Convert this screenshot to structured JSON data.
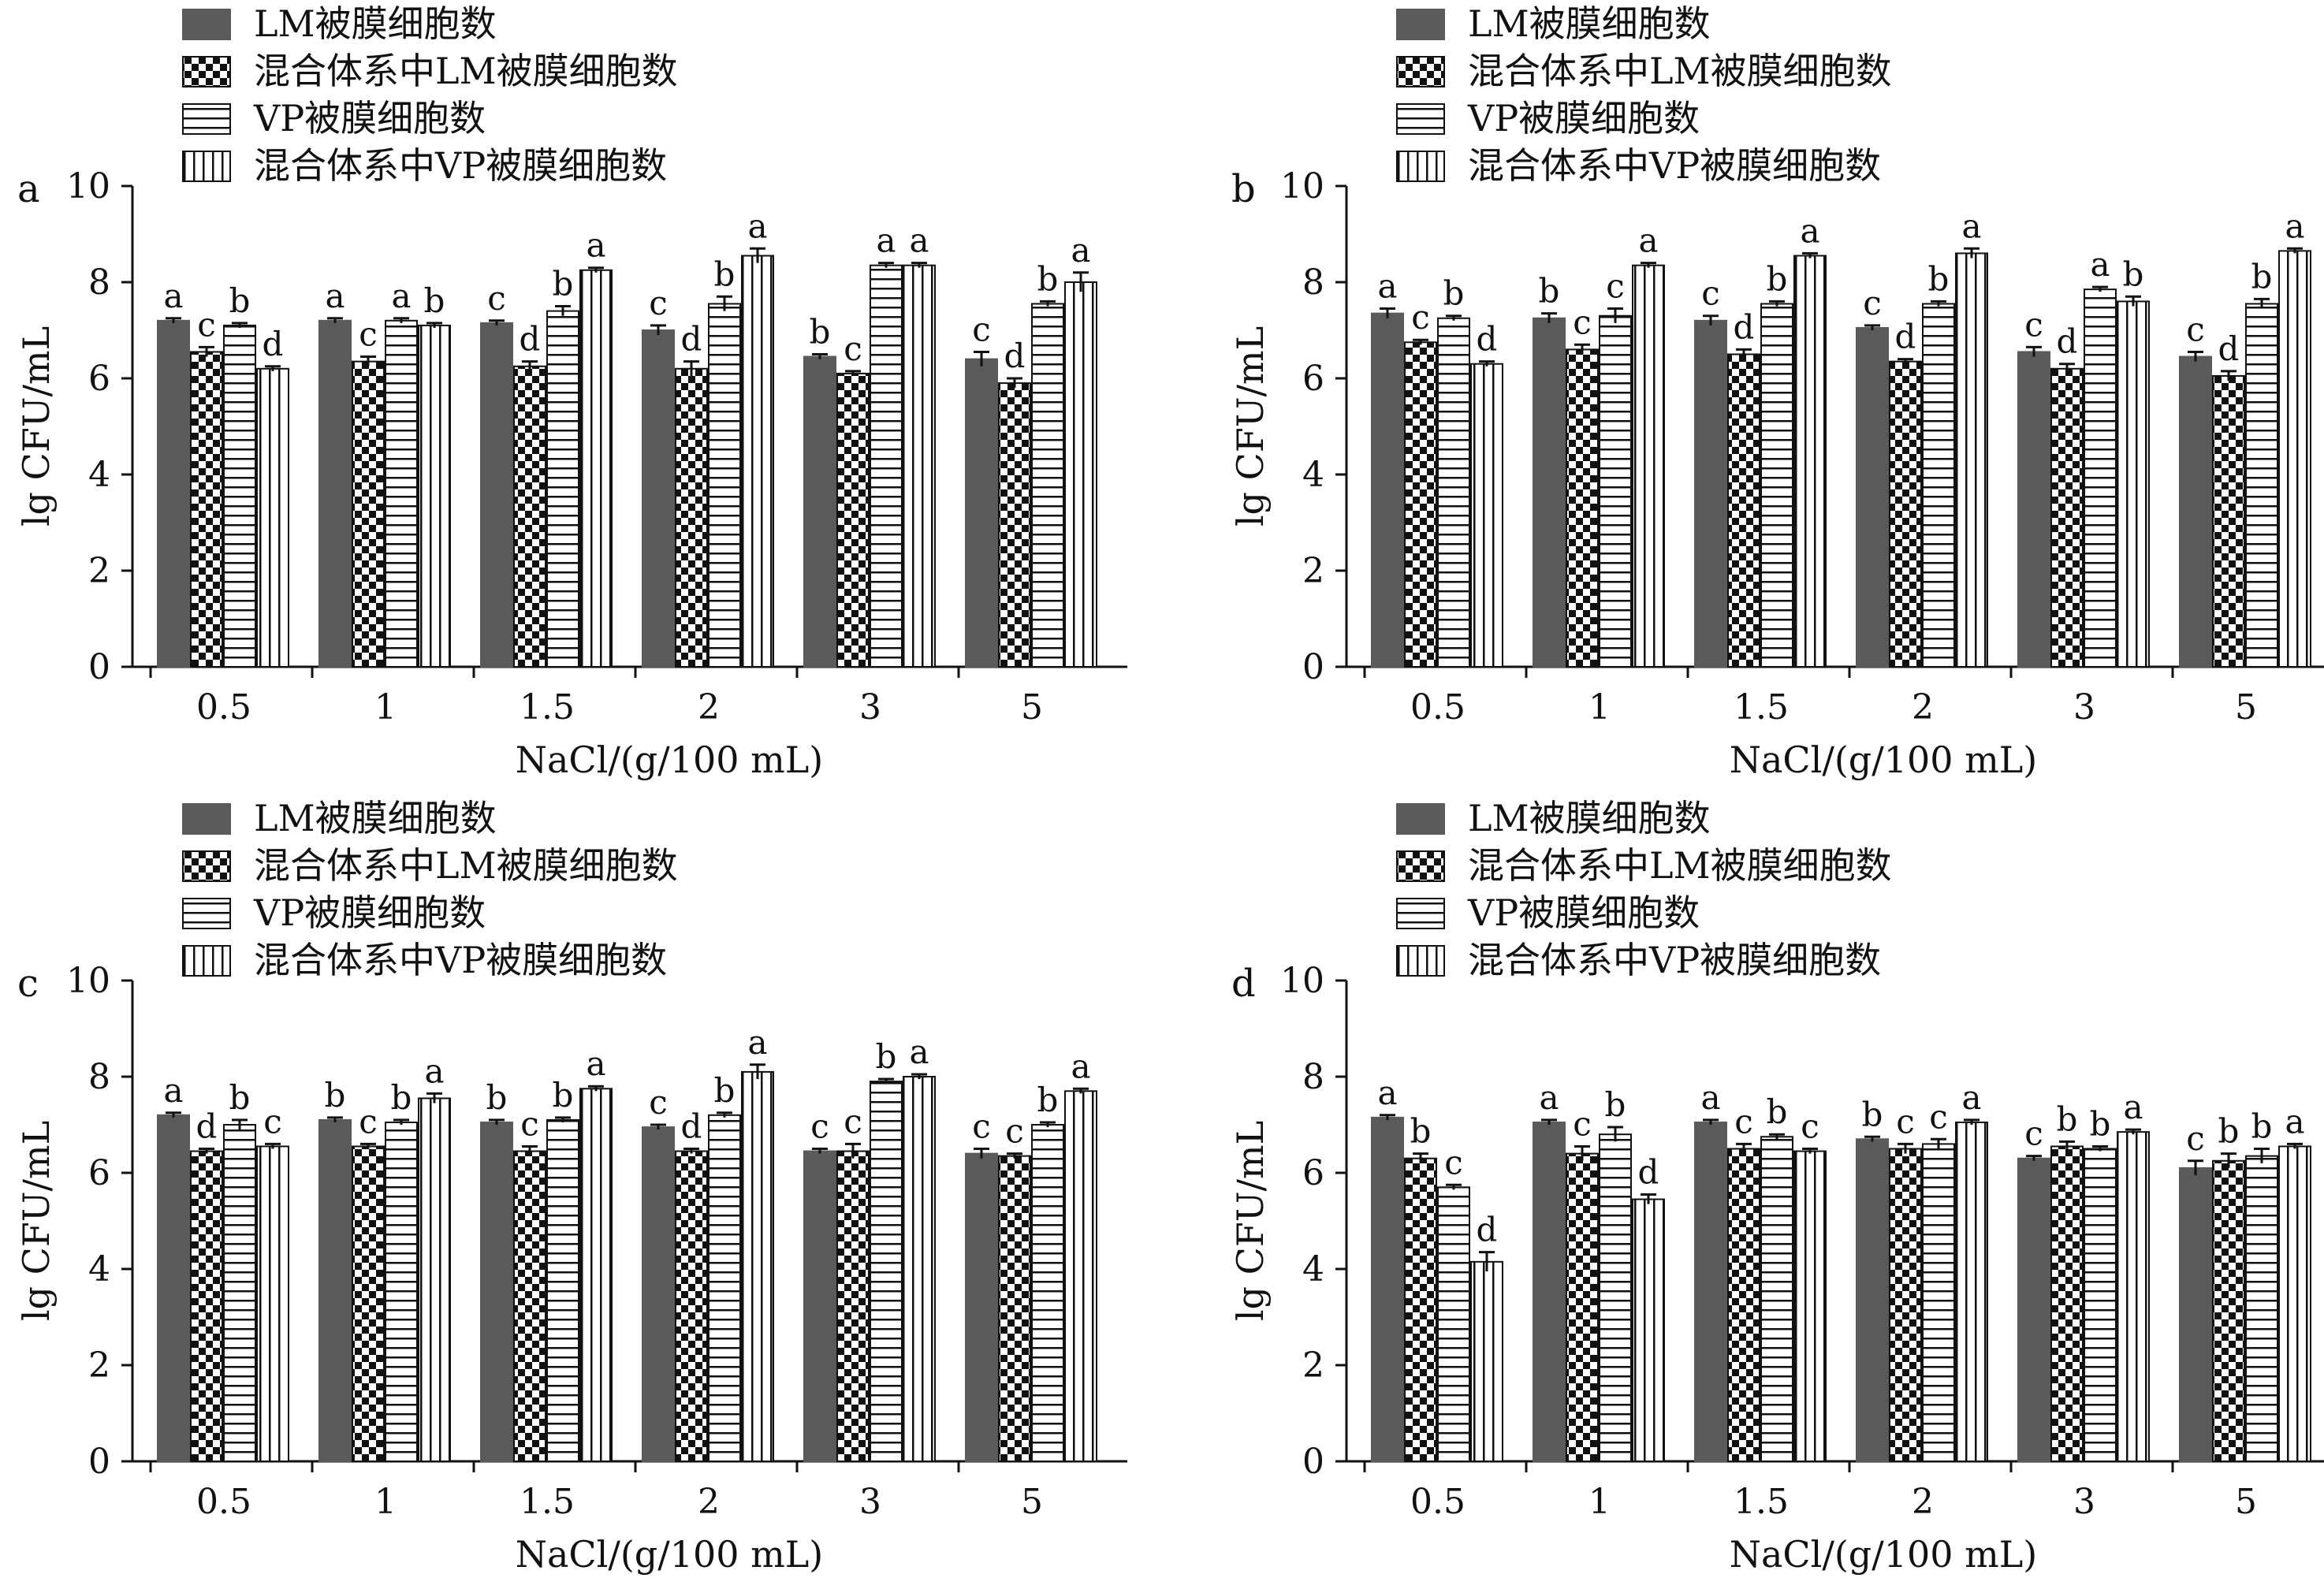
{
  "legend": [
    "LM被膜细胞数",
    "混合体系中LM被膜细胞数",
    "VP被膜细胞数",
    "混合体系中VP被膜细胞数"
  ],
  "chart_data": [
    {
      "type": "bar",
      "panel_label": "a",
      "xlabel": "NaCl/(g/100 mL)",
      "ylabel": "lg CFU/mL",
      "ylim": [
        0,
        10
      ],
      "yticks": [
        0,
        2,
        4,
        6,
        8,
        10
      ],
      "categories": [
        "0.5",
        "1",
        "1.5",
        "2",
        "3",
        "5"
      ],
      "series": [
        {
          "name": "LM被膜细胞数",
          "values": [
            7.2,
            7.2,
            7.15,
            7.0,
            6.45,
            6.4
          ],
          "errors": [
            0.05,
            0.05,
            0.05,
            0.1,
            0.05,
            0.15
          ],
          "letters": [
            "a",
            "a",
            "c",
            "c",
            "b",
            "c"
          ]
        },
        {
          "name": "混合体系中LM被膜细胞数",
          "values": [
            6.55,
            6.35,
            6.25,
            6.2,
            6.1,
            5.9
          ],
          "errors": [
            0.1,
            0.1,
            0.1,
            0.15,
            0.05,
            0.1
          ],
          "letters": [
            "c",
            "c",
            "d",
            "d",
            "c",
            "d"
          ]
        },
        {
          "name": "VP被膜细胞数",
          "values": [
            7.1,
            7.2,
            7.4,
            7.55,
            8.35,
            7.55
          ],
          "errors": [
            0.05,
            0.05,
            0.1,
            0.15,
            0.05,
            0.05
          ],
          "letters": [
            "b",
            "a",
            "b",
            "b",
            "a",
            "b"
          ]
        },
        {
          "name": "混合体系中VP被膜细胞数",
          "values": [
            6.2,
            7.1,
            8.25,
            8.55,
            8.35,
            8.0
          ],
          "errors": [
            0.05,
            0.05,
            0.05,
            0.15,
            0.05,
            0.2
          ],
          "letters": [
            "d",
            "b",
            "a",
            "a",
            "a",
            "a"
          ]
        }
      ]
    },
    {
      "type": "bar",
      "panel_label": "b",
      "xlabel": "NaCl/(g/100 mL)",
      "ylabel": "lg CFU/mL",
      "ylim": [
        0,
        10
      ],
      "yticks": [
        0,
        2,
        4,
        6,
        8,
        10
      ],
      "categories": [
        "0.5",
        "1",
        "1.5",
        "2",
        "3",
        "5"
      ],
      "series": [
        {
          "name": "LM被膜细胞数",
          "values": [
            7.35,
            7.25,
            7.2,
            7.05,
            6.55,
            6.45
          ],
          "errors": [
            0.1,
            0.1,
            0.1,
            0.05,
            0.1,
            0.1
          ],
          "letters": [
            "a",
            "b",
            "c",
            "c",
            "c",
            "c"
          ]
        },
        {
          "name": "混合体系中LM被膜细胞数",
          "values": [
            6.75,
            6.6,
            6.5,
            6.35,
            6.2,
            6.05
          ],
          "errors": [
            0.05,
            0.1,
            0.1,
            0.05,
            0.1,
            0.1
          ],
          "letters": [
            "c",
            "c",
            "d",
            "d",
            "d",
            "d"
          ]
        },
        {
          "name": "VP被膜细胞数",
          "values": [
            7.25,
            7.3,
            7.55,
            7.55,
            7.85,
            7.55
          ],
          "errors": [
            0.05,
            0.15,
            0.05,
            0.05,
            0.05,
            0.1
          ],
          "letters": [
            "b",
            "c",
            "b",
            "b",
            "a",
            "b"
          ]
        },
        {
          "name": "混合体系中VP被膜细胞数",
          "values": [
            6.3,
            8.35,
            8.55,
            8.6,
            7.6,
            8.65
          ],
          "errors": [
            0.05,
            0.05,
            0.05,
            0.1,
            0.1,
            0.05
          ],
          "letters": [
            "d",
            "a",
            "a",
            "a",
            "b",
            "a"
          ]
        }
      ]
    },
    {
      "type": "bar",
      "panel_label": "c",
      "xlabel": "NaCl/(g/100 mL)",
      "ylabel": "lg CFU/mL",
      "ylim": [
        0,
        10
      ],
      "yticks": [
        0,
        2,
        4,
        6,
        8,
        10
      ],
      "categories": [
        "0.5",
        "1",
        "1.5",
        "2",
        "3",
        "5"
      ],
      "series": [
        {
          "name": "LM被膜细胞数",
          "values": [
            7.2,
            7.1,
            7.05,
            6.95,
            6.45,
            6.4
          ],
          "errors": [
            0.05,
            0.05,
            0.05,
            0.05,
            0.05,
            0.1
          ],
          "letters": [
            "a",
            "b",
            "b",
            "c",
            "c",
            "c"
          ]
        },
        {
          "name": "混合体系中LM被膜细胞数",
          "values": [
            6.45,
            6.55,
            6.45,
            6.45,
            6.45,
            6.35
          ],
          "errors": [
            0.05,
            0.05,
            0.1,
            0.05,
            0.15,
            0.05
          ],
          "letters": [
            "d",
            "c",
            "c",
            "d",
            "c",
            "c"
          ]
        },
        {
          "name": "VP被膜细胞数",
          "values": [
            7.0,
            7.05,
            7.1,
            7.2,
            7.9,
            7.0
          ],
          "errors": [
            0.1,
            0.05,
            0.05,
            0.05,
            0.05,
            0.05
          ],
          "letters": [
            "b",
            "b",
            "b",
            "b",
            "b",
            "b"
          ]
        },
        {
          "name": "混合体系中VP被膜细胞数",
          "values": [
            6.55,
            7.55,
            7.75,
            8.1,
            8.0,
            7.7
          ],
          "errors": [
            0.05,
            0.1,
            0.05,
            0.15,
            0.05,
            0.05
          ],
          "letters": [
            "c",
            "a",
            "a",
            "a",
            "a",
            "a"
          ]
        }
      ]
    },
    {
      "type": "bar",
      "panel_label": "d",
      "xlabel": "NaCl/(g/100 mL)",
      "ylabel": "lg CFU/mL",
      "ylim": [
        0,
        10
      ],
      "yticks": [
        0,
        2,
        4,
        6,
        8,
        10
      ],
      "categories": [
        "0.5",
        "1",
        "1.5",
        "2",
        "3",
        "5"
      ],
      "series": [
        {
          "name": "LM被膜细胞数",
          "values": [
            7.15,
            7.05,
            7.05,
            6.7,
            6.3,
            6.1
          ],
          "errors": [
            0.05,
            0.05,
            0.05,
            0.05,
            0.05,
            0.15
          ],
          "letters": [
            "a",
            "a",
            "a",
            "b",
            "c",
            "c"
          ]
        },
        {
          "name": "混合体系中LM被膜细胞数",
          "values": [
            6.3,
            6.4,
            6.5,
            6.5,
            6.55,
            6.25
          ],
          "errors": [
            0.1,
            0.15,
            0.1,
            0.1,
            0.1,
            0.15
          ],
          "letters": [
            "b",
            "c",
            "c",
            "c",
            "b",
            "b"
          ]
        },
        {
          "name": "VP被膜细胞数",
          "values": [
            5.7,
            6.8,
            6.75,
            6.6,
            6.5,
            6.35
          ],
          "errors": [
            0.05,
            0.15,
            0.05,
            0.1,
            0.05,
            0.15
          ],
          "letters": [
            "c",
            "b",
            "b",
            "c",
            "b",
            "b"
          ]
        },
        {
          "name": "混合体系中VP被膜细胞数",
          "values": [
            4.15,
            5.45,
            6.45,
            7.05,
            6.85,
            6.55
          ],
          "errors": [
            0.2,
            0.1,
            0.05,
            0.05,
            0.05,
            0.05
          ],
          "letters": [
            "d",
            "d",
            "c",
            "a",
            "a",
            "a"
          ]
        }
      ]
    }
  ]
}
